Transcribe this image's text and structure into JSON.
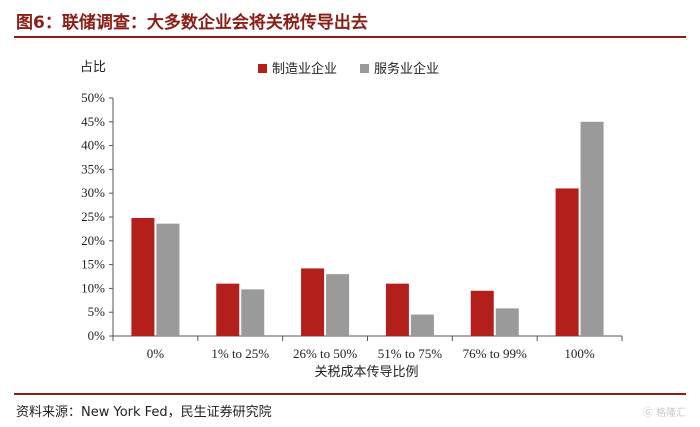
{
  "figure": {
    "title": "图6：联储调查：大多数企业会将关税传导出去",
    "source": "资料来源：New York Fed，民生证券研究院",
    "watermark": "格隆汇"
  },
  "chart_data": {
    "type": "bar",
    "title": "",
    "ylabel": "占比",
    "xlabel": "关税成本传导比例",
    "categories": [
      "0%",
      "1% to 25%",
      "26% to 50%",
      "51% to 75%",
      "76% to 99%",
      "100%"
    ],
    "series": [
      {
        "name": "制造业企业",
        "color": "#b3201c",
        "values": [
          24.8,
          11.0,
          14.2,
          11.0,
          9.5,
          31.0
        ]
      },
      {
        "name": "服务业企业",
        "color": "#9a9a9a",
        "values": [
          23.6,
          9.8,
          13.0,
          4.5,
          5.8,
          45.0
        ]
      }
    ],
    "ylim": [
      0,
      50
    ],
    "yticks": [
      "0%",
      "5%",
      "10%",
      "15%",
      "20%",
      "25%",
      "30%",
      "35%",
      "40%",
      "45%",
      "50%"
    ],
    "legend_position": "top",
    "grid": false
  }
}
